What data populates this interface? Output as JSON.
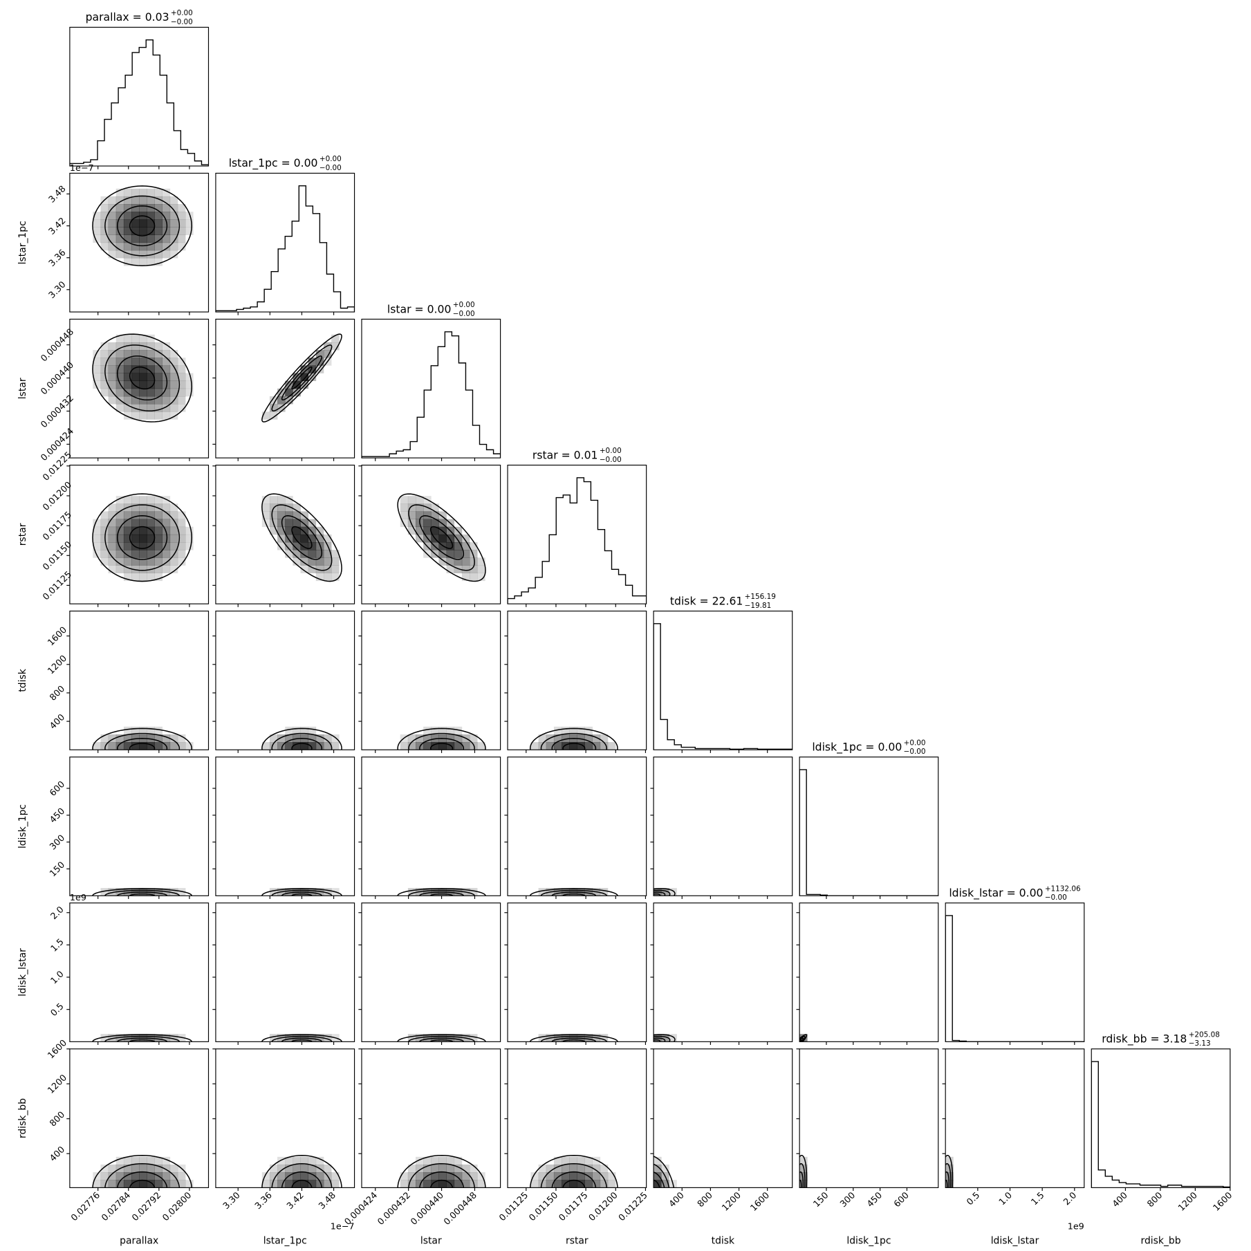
{
  "chart_data": {
    "type": "corner",
    "contour_levels": [
      0.5,
      1,
      1.5,
      2
    ],
    "parameters": [
      {
        "name": "parallax",
        "title": "parallax = 0.03",
        "upper": "+0.00",
        "lower": "−0.00",
        "lim": [
          0.027686,
          0.02805
        ],
        "ticks": [
          0.02776,
          0.02784,
          0.02792,
          {
            "value": 0.028,
            "label": "0.02800"
          }
        ],
        "mean": 0.027876,
        "sd": 6.5e-05,
        "hist": [
          2,
          2,
          3,
          5,
          20,
          37,
          50,
          62,
          72,
          90,
          94,
          100,
          88,
          72,
          50,
          28,
          13,
          10,
          4,
          1
        ]
      },
      {
        "name": "lstar_1pc",
        "title": "lstar_1pc = 0.00",
        "upper": "+0.00",
        "lower": "−0.00",
        "offset": "1e−7",
        "lim": [
          3.258e-07,
          3.519e-07
        ],
        "ticks": [
          {
            "value": 3.3e-07,
            "label": "3.30"
          },
          {
            "value": 3.36e-07,
            "label": "3.36"
          },
          {
            "value": 3.42e-07,
            "label": "3.42"
          },
          {
            "value": 3.48e-07,
            "label": "3.48"
          }
        ],
        "mean": 3.42e-07,
        "sd": 3.75e-09,
        "hist": [
          1,
          1,
          1,
          2,
          3,
          4,
          8,
          18,
          32,
          50,
          60,
          72,
          100,
          84,
          78,
          55,
          30,
          16,
          3,
          4
        ]
      },
      {
        "name": "lstar",
        "title": "lstar = 0.00",
        "upper": "+0.00",
        "lower": "−0.00",
        "lim": [
          0.0004207,
          0.0004542
        ],
        "ticks": [
          0.000424,
          0.000432,
          {
            "value": 0.00044,
            "label": "0.000440"
          },
          0.000448
        ],
        "mean": 0.00044,
        "sd": 5.3e-06,
        "hist": [
          1,
          1,
          1,
          1,
          3,
          5,
          6,
          12,
          30,
          50,
          68,
          82,
          93,
          90,
          70,
          50,
          24,
          10,
          6,
          3
        ]
      },
      {
        "name": "rstar",
        "title": "rstar = 0.01",
        "upper": "+0.00",
        "lower": "−0.00",
        "lim": [
          0.011095,
          0.012257
        ],
        "ticks": [
          0.01125,
          {
            "value": 0.0115,
            "label": "0.01150"
          },
          0.01175,
          {
            "value": 0.012,
            "label": "0.01200"
          },
          0.01225
        ],
        "mean": 0.01165,
        "sd": 0.000183,
        "hist": [
          4,
          6,
          9,
          12,
          20,
          32,
          52,
          80,
          82,
          76,
          95,
          92,
          78,
          56,
          40,
          26,
          22,
          14,
          6,
          6
        ]
      },
      {
        "name": "tdisk",
        "title": "tdisk = 22.61",
        "upper": "+156.19",
        "lower": "−19.81",
        "lim": [
          0,
          1950
        ],
        "ticks": [
          400,
          800,
          1200,
          1600
        ],
        "mean": 20,
        "sd": 140,
        "hist": [
          100,
          24,
          8,
          4,
          2,
          2,
          1,
          1,
          1,
          1,
          1,
          0.5,
          0.5,
          1,
          1,
          0.5,
          0.5,
          0.5,
          0.5,
          0.5
        ]
      },
      {
        "name": "ldisk_1pc",
        "title": "ldisk_1pc = 0.00",
        "upper": "+0.00",
        "lower": "−0.00",
        "lim": [
          0,
          775
        ],
        "ticks": [
          150,
          300,
          450,
          600
        ],
        "mean": 0,
        "sd": 20,
        "hist": [
          100,
          1,
          1,
          0.5,
          0,
          0,
          0,
          0,
          0,
          0,
          0,
          0,
          0,
          0,
          0,
          0,
          0,
          0,
          0,
          0
        ]
      },
      {
        "name": "ldisk_lstar",
        "title": "ldisk_lstar = 0.00",
        "upper": "+1132.06",
        "lower": "−0.00",
        "offset": "1e9",
        "lim": [
          0,
          2150000000
        ],
        "ticks": [
          {
            "value": 500000000,
            "label": "0.5"
          },
          {
            "value": 1000000000,
            "label": "1.0"
          },
          {
            "value": 1500000000,
            "label": "1.5"
          },
          {
            "value": 2000000000,
            "label": "2.0"
          }
        ],
        "mean": 0,
        "sd": 55000000,
        "hist": [
          100,
          1,
          0.5,
          0,
          0,
          0,
          0,
          0,
          0,
          0,
          0,
          0,
          0,
          0,
          0,
          0,
          0,
          0,
          0,
          0
        ]
      },
      {
        "name": "rdisk_bb",
        "title": "rdisk_bb = 3.18",
        "upper": "+205.08",
        "lower": "−3.13",
        "lim": [
          10,
          1600
        ],
        "ticks": [
          400,
          800,
          1200,
          1600
        ],
        "mean": 0,
        "sd": 190,
        "hist": [
          100,
          14,
          9,
          6,
          4,
          3,
          3,
          2,
          2,
          2,
          1,
          2,
          2,
          1,
          1,
          1,
          1,
          1,
          1,
          0.5
        ]
      }
    ],
    "correlation": [
      [],
      [
        0
      ],
      [
        -0.2,
        0.95
      ],
      [
        0,
        -0.7,
        -0.75
      ],
      [
        0,
        0,
        0,
        0
      ],
      [
        0,
        0,
        0,
        0,
        0.3
      ],
      [
        0,
        0,
        0,
        0,
        0.3,
        0.9
      ],
      [
        0,
        0,
        0,
        0,
        -0.3,
        0.3,
        0.3
      ]
    ]
  }
}
